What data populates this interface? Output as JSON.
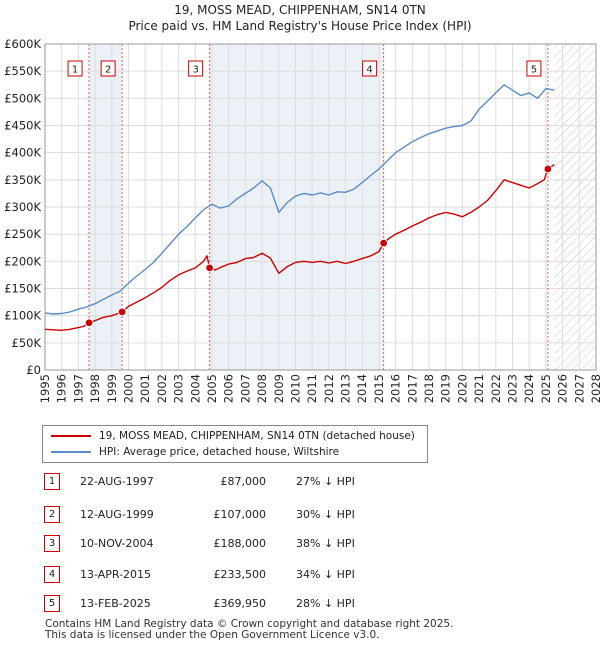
{
  "chart_data": {
    "type": "line",
    "title": "19, MOSS MEAD, CHIPPENHAM, SN14 0TN",
    "subtitle": "Price paid vs. HM Land Registry's House Price Index (HPI)",
    "xlabel": "",
    "ylabel": "",
    "xlim": [
      1995,
      2028
    ],
    "ylim": [
      0,
      600000
    ],
    "x_ticks": [
      1995,
      1996,
      1997,
      1998,
      1999,
      2000,
      2001,
      2002,
      2003,
      2004,
      2005,
      2006,
      2007,
      2008,
      2009,
      2010,
      2011,
      2012,
      2013,
      2014,
      2015,
      2016,
      2017,
      2018,
      2019,
      2020,
      2021,
      2022,
      2023,
      2024,
      2025,
      2026,
      2027,
      2028
    ],
    "y_ticks": [
      {
        "value": 0,
        "label": "£0"
      },
      {
        "value": 50000,
        "label": "£50K"
      },
      {
        "value": 100000,
        "label": "£100K"
      },
      {
        "value": 150000,
        "label": "£150K"
      },
      {
        "value": 200000,
        "label": "£200K"
      },
      {
        "value": 250000,
        "label": "£250K"
      },
      {
        "value": 300000,
        "label": "£300K"
      },
      {
        "value": 350000,
        "label": "£350K"
      },
      {
        "value": 400000,
        "label": "£400K"
      },
      {
        "value": 450000,
        "label": "£450K"
      },
      {
        "value": 500000,
        "label": "£500K"
      },
      {
        "value": 550000,
        "label": "£550K"
      },
      {
        "value": 600000,
        "label": "£600K"
      }
    ],
    "grid": true,
    "forecast_start": 2025.5,
    "series": [
      {
        "name": "19, MOSS MEAD, CHIPPENHAM, SN14 0TN (detached house)",
        "color": "#cc0000",
        "x": [
          1995,
          1995.5,
          1996,
          1996.5,
          1997,
          1997.3,
          1997.64,
          1998,
          1998.5,
          1999,
          1999.3,
          1999.62,
          2000,
          2000.5,
          2001,
          2001.5,
          2002,
          2002.5,
          2003,
          2003.5,
          2004,
          2004.5,
          2004.7,
          2004.86,
          2005.2,
          2005.6,
          2006,
          2006.5,
          2007,
          2007.5,
          2008,
          2008.5,
          2009,
          2009.5,
          2010,
          2010.5,
          2011,
          2011.5,
          2012,
          2012.5,
          2013,
          2013.5,
          2014,
          2014.5,
          2015,
          2015.28,
          2015.6,
          2016,
          2016.5,
          2017,
          2017.5,
          2018,
          2018.5,
          2019,
          2019.5,
          2020,
          2020.5,
          2021,
          2021.5,
          2022,
          2022.5,
          2023,
          2023.5,
          2024,
          2024.5,
          2024.9,
          2025.12,
          2025.5
        ],
        "y": [
          75000,
          74000,
          73000,
          75000,
          78000,
          80000,
          87000,
          91000,
          97000,
          100000,
          103000,
          107000,
          117000,
          125000,
          133000,
          142000,
          152000,
          165000,
          175000,
          182000,
          188000,
          200000,
          210000,
          188000,
          184000,
          190000,
          195000,
          198000,
          205000,
          207000,
          215000,
          206000,
          178000,
          190000,
          198000,
          200000,
          198000,
          200000,
          197000,
          200000,
          196000,
          200000,
          205000,
          210000,
          218000,
          233500,
          242000,
          250000,
          257000,
          265000,
          272000,
          280000,
          286000,
          290000,
          287000,
          282000,
          290000,
          300000,
          312000,
          330000,
          350000,
          345000,
          340000,
          335000,
          343000,
          350000,
          369950,
          378000
        ]
      },
      {
        "name": "HPI: Average price, detached house, Wiltshire",
        "color": "#5b8cc8",
        "x": [
          1995,
          1995.5,
          1996,
          1996.5,
          1997,
          1997.5,
          1998,
          1998.5,
          1999,
          1999.5,
          2000,
          2000.5,
          2001,
          2001.5,
          2002,
          2002.5,
          2003,
          2003.5,
          2004,
          2004.5,
          2005,
          2005.5,
          2006,
          2006.5,
          2007,
          2007.5,
          2008,
          2008.5,
          2009,
          2009.5,
          2010,
          2010.5,
          2011,
          2011.5,
          2012,
          2012.5,
          2013,
          2013.5,
          2014,
          2014.5,
          2015,
          2015.5,
          2016,
          2016.5,
          2017,
          2017.5,
          2018,
          2018.5,
          2019,
          2019.5,
          2020,
          2020.5,
          2021,
          2021.5,
          2022,
          2022.5,
          2023,
          2023.5,
          2024,
          2024.5,
          2025,
          2025.5
        ],
        "y": [
          105000,
          103000,
          104000,
          107000,
          112000,
          116000,
          122000,
          130000,
          138000,
          145000,
          160000,
          173000,
          185000,
          198000,
          215000,
          232000,
          250000,
          264000,
          280000,
          295000,
          305000,
          298000,
          302000,
          315000,
          325000,
          335000,
          348000,
          335000,
          290000,
          308000,
          320000,
          325000,
          322000,
          326000,
          322000,
          328000,
          327000,
          333000,
          345000,
          358000,
          370000,
          385000,
          400000,
          410000,
          420000,
          428000,
          435000,
          440000,
          445000,
          448000,
          450000,
          458000,
          480000,
          495000,
          510000,
          525000,
          515000,
          505000,
          510000,
          500000,
          518000,
          515000
        ]
      }
    ],
    "sale_markers": [
      {
        "id": "1",
        "x": 1997.64,
        "y": 87000
      },
      {
        "id": "2",
        "x": 1999.62,
        "y": 107000
      },
      {
        "id": "3",
        "x": 2004.86,
        "y": 188000
      },
      {
        "id": "4",
        "x": 2015.28,
        "y": 233500
      },
      {
        "id": "5",
        "x": 2025.12,
        "y": 369950
      }
    ],
    "shaded_periods": [
      {
        "from": 1997.64,
        "to": 1999.62
      },
      {
        "from": 2004.86,
        "to": 2015.28
      }
    ]
  },
  "legend": {
    "property_label": "19, MOSS MEAD, CHIPPENHAM, SN14 0TN (detached house)",
    "hpi_label": "HPI: Average price, detached house, Wiltshire"
  },
  "sales": [
    {
      "num": "1",
      "date": "22-AUG-1997",
      "price": "£87,000",
      "hpi": "27% ↓ HPI"
    },
    {
      "num": "2",
      "date": "12-AUG-1999",
      "price": "£107,000",
      "hpi": "30% ↓ HPI"
    },
    {
      "num": "3",
      "date": "10-NOV-2004",
      "price": "£188,000",
      "hpi": "38% ↓ HPI"
    },
    {
      "num": "4",
      "date": "13-APR-2015",
      "price": "£233,500",
      "hpi": "34% ↓ HPI"
    },
    {
      "num": "5",
      "date": "13-FEB-2025",
      "price": "£369,950",
      "hpi": "28% ↓ HPI"
    }
  ],
  "footer": {
    "line1": "Contains HM Land Registry data © Crown copyright and database right 2025.",
    "line2": "This data is licensed under the Open Government Licence v3.0."
  }
}
